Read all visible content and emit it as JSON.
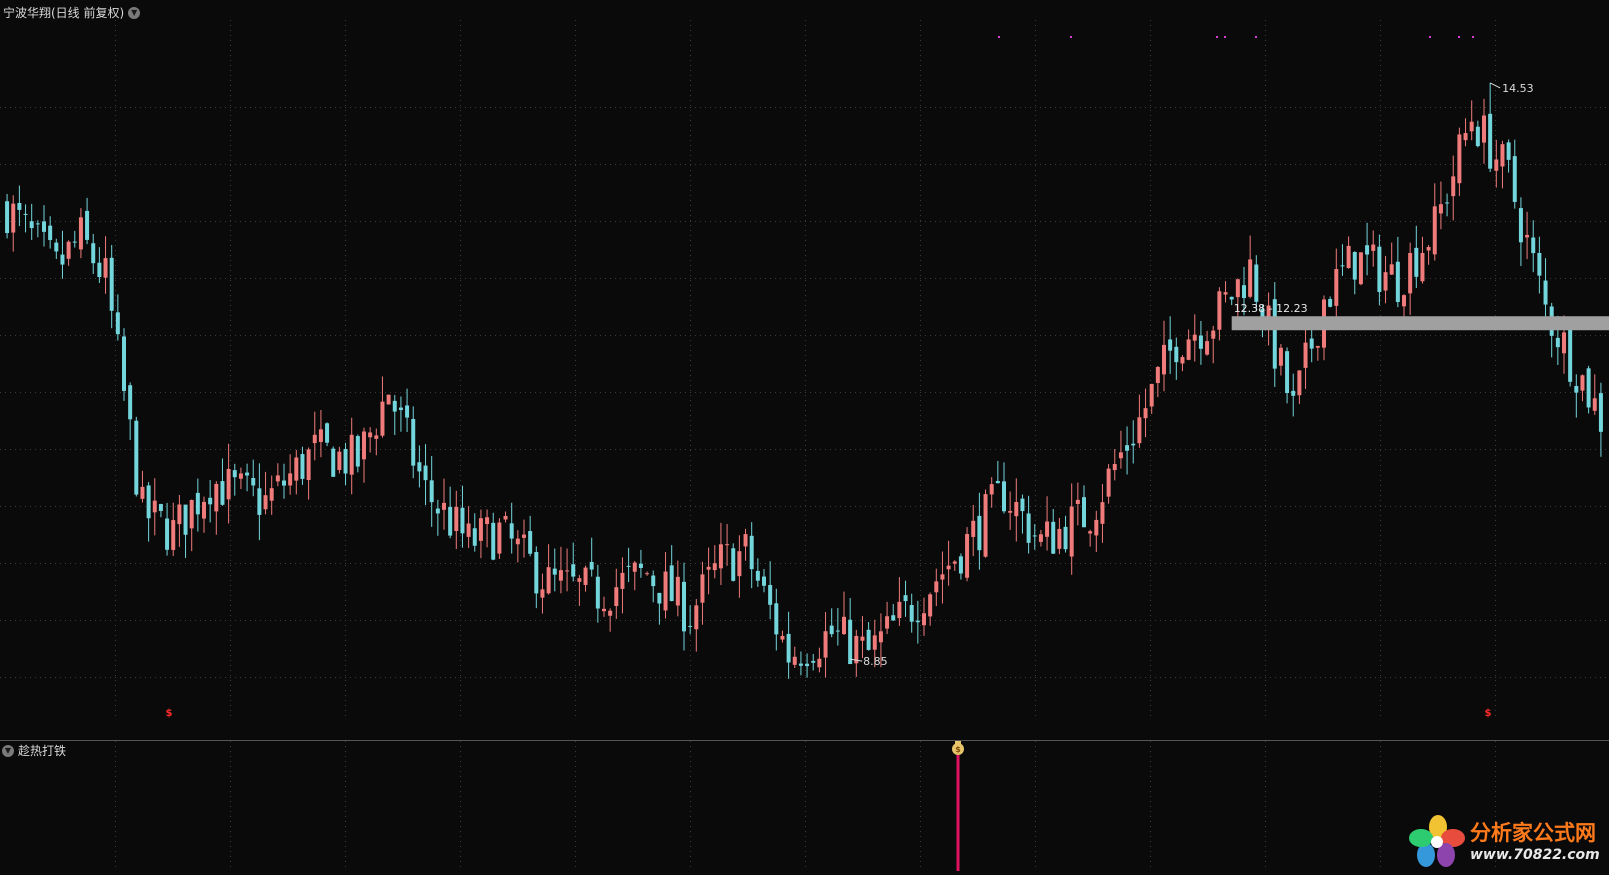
{
  "main_panel": {
    "title": "宁波华翔(日线 前复权)",
    "toggle_icon": "chevron-down-icon"
  },
  "sub_panel": {
    "title": "趁热打铁",
    "toggle_icon": "chevron-down-icon",
    "signal_icon": "money-bag-icon"
  },
  "watermark": {
    "name": "分析家公式网",
    "url": "www.70822.com"
  },
  "colors": {
    "background": "#0a0a0a",
    "up": "#f07b7b",
    "down": "#73d6dc",
    "grid": "#3a3a3a",
    "zone": "#a0a0a0",
    "signal": "#e0115f",
    "marker": "#ff2b2b"
  },
  "chart_data": [
    {
      "type": "candlestick",
      "title": "宁波华翔(日线 前复权)",
      "x_range": [
        0,
        260
      ],
      "ylim": [
        8.25,
        15.15
      ],
      "grid": true,
      "anchors": [
        [
          0,
          13.3
        ],
        [
          8,
          12.7
        ],
        [
          12,
          13.0
        ],
        [
          16,
          12.6
        ],
        [
          22,
          10.3
        ],
        [
          27,
          10.1
        ],
        [
          33,
          10.6
        ],
        [
          42,
          10.4
        ],
        [
          50,
          10.9
        ],
        [
          57,
          10.8
        ],
        [
          62,
          11.5
        ],
        [
          68,
          10.5
        ],
        [
          75,
          10.0
        ],
        [
          80,
          10.1
        ],
        [
          88,
          9.6
        ],
        [
          96,
          9.5
        ],
        [
          104,
          9.7
        ],
        [
          111,
          9.3
        ],
        [
          116,
          9.8
        ],
        [
          120,
          9.9
        ],
        [
          127,
          8.9
        ],
        [
          134,
          9.1
        ],
        [
          140,
          8.9
        ],
        [
          146,
          9.3
        ],
        [
          156,
          10.0
        ],
        [
          162,
          10.5
        ],
        [
          168,
          10.0
        ],
        [
          176,
          10.3
        ],
        [
          184,
          11.2
        ],
        [
          190,
          12.0
        ],
        [
          196,
          12.2
        ],
        [
          202,
          12.7
        ],
        [
          209,
          11.3
        ],
        [
          214,
          12.4
        ],
        [
          219,
          12.8
        ],
        [
          226,
          12.6
        ],
        [
          232,
          13.1
        ],
        [
          238,
          14.2
        ],
        [
          244,
          13.6
        ],
        [
          250,
          12.3
        ],
        [
          256,
          11.6
        ],
        [
          260,
          11.1
        ]
      ],
      "high_label": "14.53",
      "low_label": "8.85",
      "zone_label": "12.38 - 12.23",
      "zone_range": [
        12.23,
        12.38
      ]
    },
    {
      "type": "signal",
      "title": "趁热打铁",
      "signals": [
        {
          "position": "center",
          "icon": "money-bag-icon"
        }
      ]
    }
  ]
}
